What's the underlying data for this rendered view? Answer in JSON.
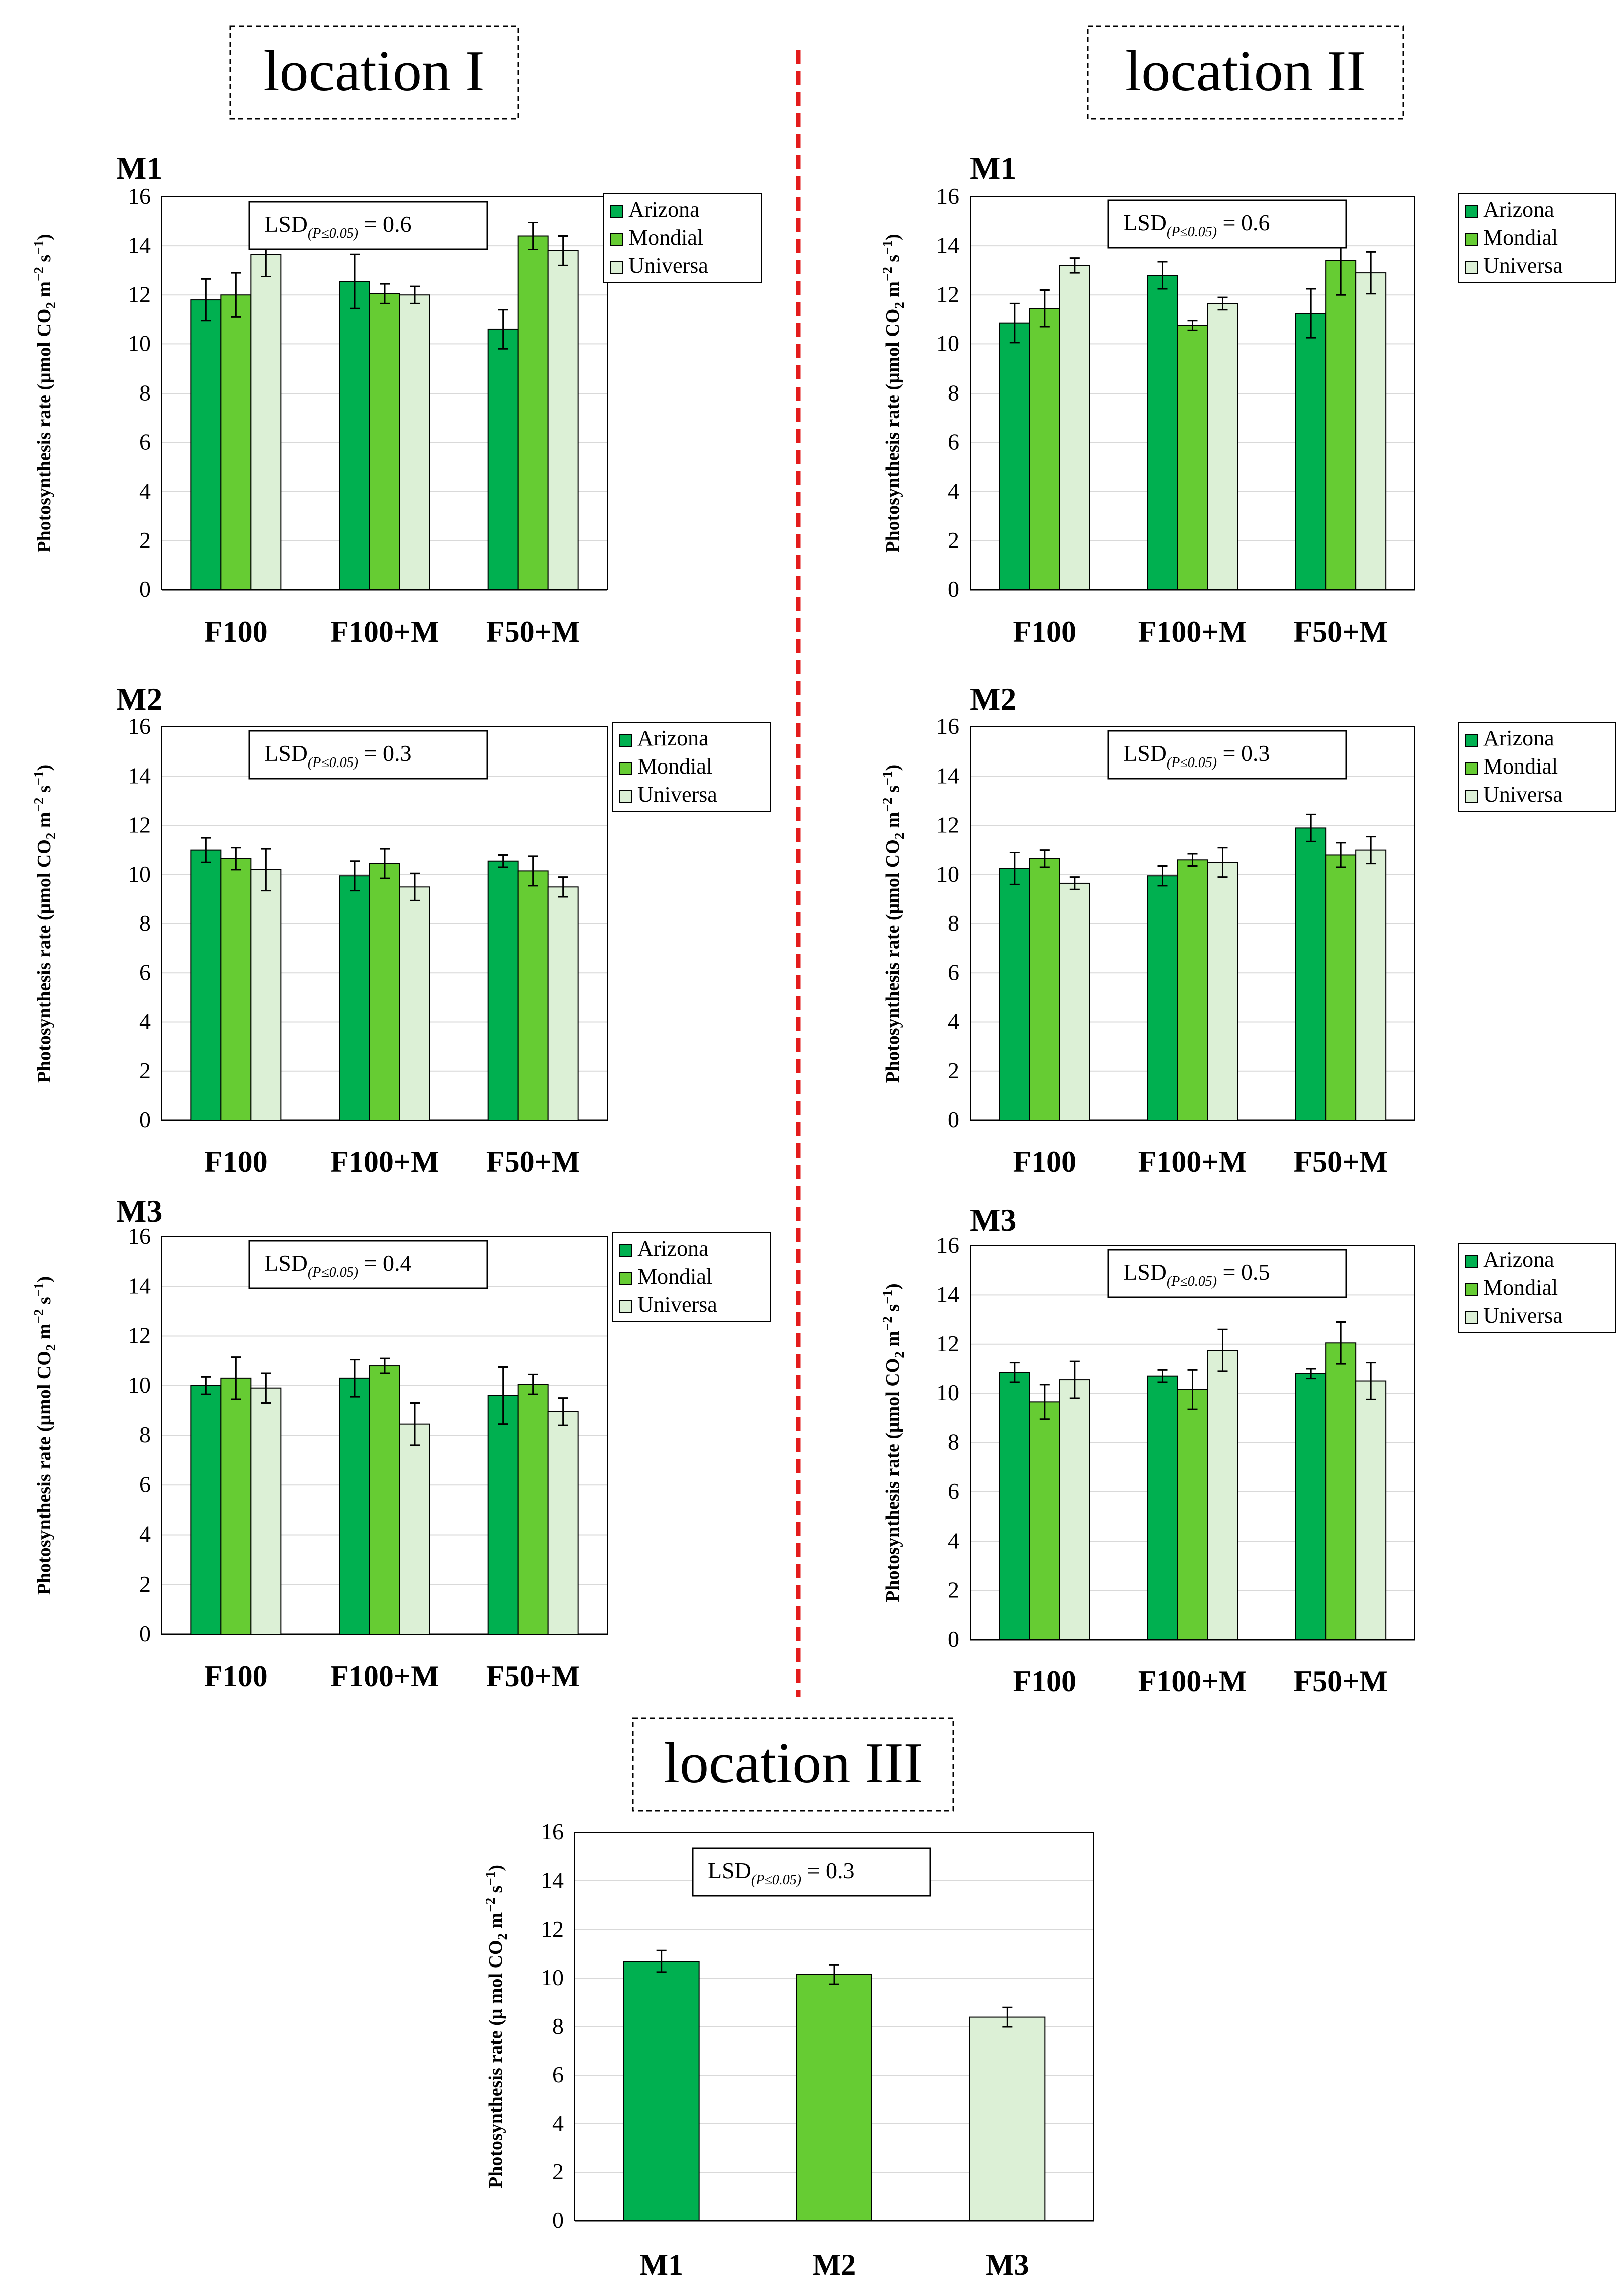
{
  "figure": {
    "location_titles": [
      "location I",
      "location II",
      "location III"
    ],
    "y_axis_label_full": "Photosynthesis rate (μmol CO2 m−2 s−1)",
    "y_axis_label_loc3": "Photosynthesis rate (μ mol CO2 m−2 s−1)",
    "lsd_prefix": "LSD",
    "lsd_subscript": "(P≤0.05)"
  },
  "colors": {
    "arizona": "#00b050",
    "mondial": "#66cc33",
    "universa": "#dcf0d6",
    "bar_outline": "#000000",
    "gridline": "#d9d9d9",
    "separator": "#e31b1b"
  },
  "chart_data": [
    {
      "panel": "location I - M1",
      "type": "bar",
      "title": "M1",
      "categories": [
        "F100",
        "F100+M",
        "F50+M"
      ],
      "series": [
        {
          "name": "Arizona",
          "values": [
            11.8,
            12.55,
            10.6
          ],
          "errors": [
            0.85,
            1.1,
            0.8
          ]
        },
        {
          "name": "Mondial",
          "values": [
            12.0,
            12.05,
            14.4
          ],
          "errors": [
            0.9,
            0.4,
            0.55
          ]
        },
        {
          "name": "Universa",
          "values": [
            13.65,
            12.0,
            13.8
          ],
          "errors": [
            0.9,
            0.35,
            0.6
          ]
        }
      ],
      "lsd": "0.6",
      "ylabel": "Photosynthesis rate (μmol CO2 m−2 s−1)",
      "yticks": [
        "0",
        "2",
        "4",
        "6",
        "8",
        "10",
        "12",
        "14",
        "16"
      ],
      "ylim": [
        0,
        16
      ],
      "grid": true,
      "legend": "top-right"
    },
    {
      "panel": "location I - M2",
      "type": "bar",
      "title": "M2",
      "categories": [
        "F100",
        "F100+M",
        "F50+M"
      ],
      "series": [
        {
          "name": "Arizona",
          "values": [
            11.0,
            9.95,
            10.55
          ],
          "errors": [
            0.5,
            0.6,
            0.25
          ]
        },
        {
          "name": "Mondial",
          "values": [
            10.65,
            10.45,
            10.15
          ],
          "errors": [
            0.45,
            0.6,
            0.6
          ]
        },
        {
          "name": "Universa",
          "values": [
            10.2,
            9.5,
            9.5
          ],
          "errors": [
            0.85,
            0.55,
            0.4
          ]
        }
      ],
      "lsd": "0.3",
      "ylabel": "Photosynthesis rate (μmol CO2 m−2 s−1)",
      "yticks": [
        "0",
        "2",
        "4",
        "6",
        "8",
        "10",
        "12",
        "14",
        "16"
      ],
      "ylim": [
        0,
        16
      ],
      "grid": true,
      "legend": "top-right"
    },
    {
      "panel": "location I - M3",
      "type": "bar",
      "title": "M3",
      "categories": [
        "F100",
        "F100+M",
        "F50+M"
      ],
      "series": [
        {
          "name": "Arizona",
          "values": [
            10.0,
            10.3,
            9.6
          ],
          "errors": [
            0.35,
            0.75,
            1.15
          ]
        },
        {
          "name": "Mondial",
          "values": [
            10.3,
            10.8,
            10.05
          ],
          "errors": [
            0.85,
            0.3,
            0.4
          ]
        },
        {
          "name": "Universa",
          "values": [
            9.9,
            8.45,
            8.95
          ],
          "errors": [
            0.6,
            0.85,
            0.55
          ]
        }
      ],
      "lsd": "0.4",
      "ylabel": "Photosynthesis rate (μmol CO2 m−2 s−1)",
      "yticks": [
        "0",
        "2",
        "4",
        "6",
        "8",
        "10",
        "12",
        "14",
        "16"
      ],
      "ylim": [
        0,
        16
      ],
      "grid": true,
      "legend": "top-right"
    },
    {
      "panel": "location II - M1",
      "type": "bar",
      "title": "M1",
      "categories": [
        "F100",
        "F100+M",
        "F50+M"
      ],
      "series": [
        {
          "name": "Arizona",
          "values": [
            10.85,
            12.8,
            11.25
          ],
          "errors": [
            0.8,
            0.55,
            1.0
          ]
        },
        {
          "name": "Mondial",
          "values": [
            11.45,
            10.75,
            13.4
          ],
          "errors": [
            0.75,
            0.2,
            1.4
          ]
        },
        {
          "name": "Universa",
          "values": [
            13.2,
            11.65,
            12.9
          ],
          "errors": [
            0.3,
            0.25,
            0.85
          ]
        }
      ],
      "lsd": "0.6",
      "ylabel": "Photosynthesis rate (μmol CO2 m−2 s−1)",
      "yticks": [
        "0",
        "2",
        "4",
        "6",
        "8",
        "10",
        "12",
        "14",
        "16"
      ],
      "ylim": [
        0,
        16
      ],
      "grid": true,
      "legend": "top-right"
    },
    {
      "panel": "location II - M2",
      "type": "bar",
      "title": "M2",
      "categories": [
        "F100",
        "F100+M",
        "F50+M"
      ],
      "series": [
        {
          "name": "Arizona",
          "values": [
            10.25,
            9.95,
            11.9
          ],
          "errors": [
            0.65,
            0.4,
            0.55
          ]
        },
        {
          "name": "Mondial",
          "values": [
            10.65,
            10.6,
            10.8
          ],
          "errors": [
            0.35,
            0.25,
            0.5
          ]
        },
        {
          "name": "Universa",
          "values": [
            9.65,
            10.5,
            11.0
          ],
          "errors": [
            0.25,
            0.6,
            0.55
          ]
        }
      ],
      "lsd": "0.3",
      "ylabel": "Photosynthesis rate (μmol CO2 m−2 s−1)",
      "yticks": [
        "0",
        "2",
        "4",
        "6",
        "8",
        "10",
        "12",
        "14",
        "16"
      ],
      "ylim": [
        0,
        16
      ],
      "grid": true,
      "legend": "top-right"
    },
    {
      "panel": "location II - M3",
      "type": "bar",
      "title": "M3",
      "categories": [
        "F100",
        "F100+M",
        "F50+M"
      ],
      "series": [
        {
          "name": "Arizona",
          "values": [
            10.85,
            10.7,
            10.8
          ],
          "errors": [
            0.4,
            0.25,
            0.2
          ]
        },
        {
          "name": "Mondial",
          "values": [
            9.65,
            10.15,
            12.05
          ],
          "errors": [
            0.7,
            0.8,
            0.85
          ]
        },
        {
          "name": "Universa",
          "values": [
            10.55,
            11.75,
            10.5
          ],
          "errors": [
            0.75,
            0.85,
            0.75
          ]
        }
      ],
      "lsd": "0.5",
      "ylabel": "Photosynthesis rate (μmol CO2 m−2 s−1)",
      "yticks": [
        "0",
        "2",
        "4",
        "6",
        "8",
        "10",
        "12",
        "14",
        "16"
      ],
      "ylim": [
        0,
        16
      ],
      "grid": true,
      "legend": "top-right"
    },
    {
      "panel": "location III",
      "type": "bar",
      "title": "",
      "categories": [
        "M1",
        "M2",
        "M3"
      ],
      "values": [
        10.7,
        10.15,
        8.4
      ],
      "errors": [
        0.45,
        0.4,
        0.4
      ],
      "bar_colors": [
        "arizona",
        "mondial",
        "universa"
      ],
      "lsd": "0.3",
      "ylabel": "Photosynthesis rate (μ mol CO2 m−2 s−1)",
      "yticks": [
        "0",
        "2",
        "4",
        "6",
        "8",
        "10",
        "12",
        "14",
        "16"
      ],
      "ylim": [
        0,
        16
      ],
      "grid": true,
      "legend": "none"
    }
  ]
}
